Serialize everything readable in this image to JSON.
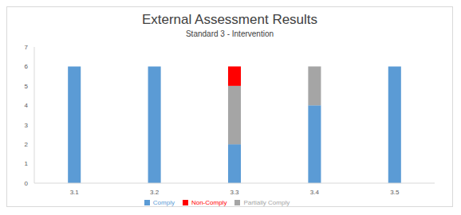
{
  "chart_data": {
    "type": "bar",
    "title": "External Assessment Results",
    "subtitle": "Standard 3 - Intervention",
    "categories": [
      "3.1",
      "3.2",
      "3.3",
      "3.4",
      "3.5"
    ],
    "series": [
      {
        "name": "Comply",
        "color": "#5b9bd5",
        "values": [
          6,
          6,
          2,
          4,
          6
        ]
      },
      {
        "name": "Partially Comply",
        "color": "#a5a5a5",
        "values": [
          0,
          0,
          3,
          2,
          0
        ]
      },
      {
        "name": "Non-Comply",
        "color": "#ff0000",
        "values": [
          0,
          0,
          1,
          0,
          0
        ]
      }
    ],
    "ylim": [
      0,
      7
    ],
    "yticks": [
      0,
      1,
      2,
      3,
      4,
      5,
      6,
      7
    ],
    "stacked": true,
    "grid": false,
    "legend": "bottom"
  }
}
